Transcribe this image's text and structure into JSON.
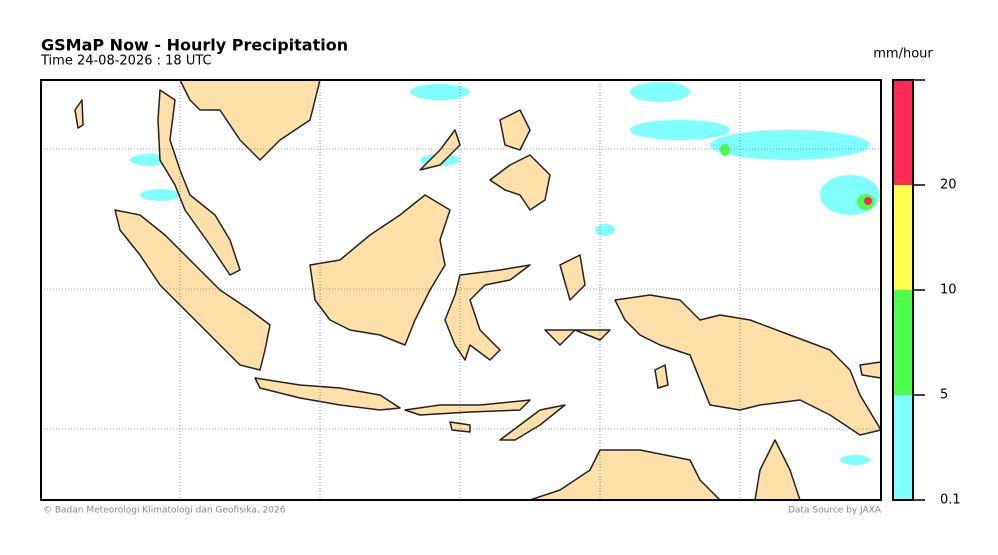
{
  "map": {
    "title": "GSMaP Now - Hourly Precipitation",
    "time": "Time  24-08-2026 : 18 UTC",
    "colorbar": {
      "unit": "mm/hour",
      "levels": [
        0.1,
        5,
        10,
        20
      ],
      "colors": [
        "#80ffff",
        "#4dff4d",
        "#ffff4d",
        "#ff2a55"
      ]
    },
    "credit": "© Badan Meteorologi Klimatologi dan Geofisika, 2026",
    "source": "Data Source by JAXA"
  }
}
